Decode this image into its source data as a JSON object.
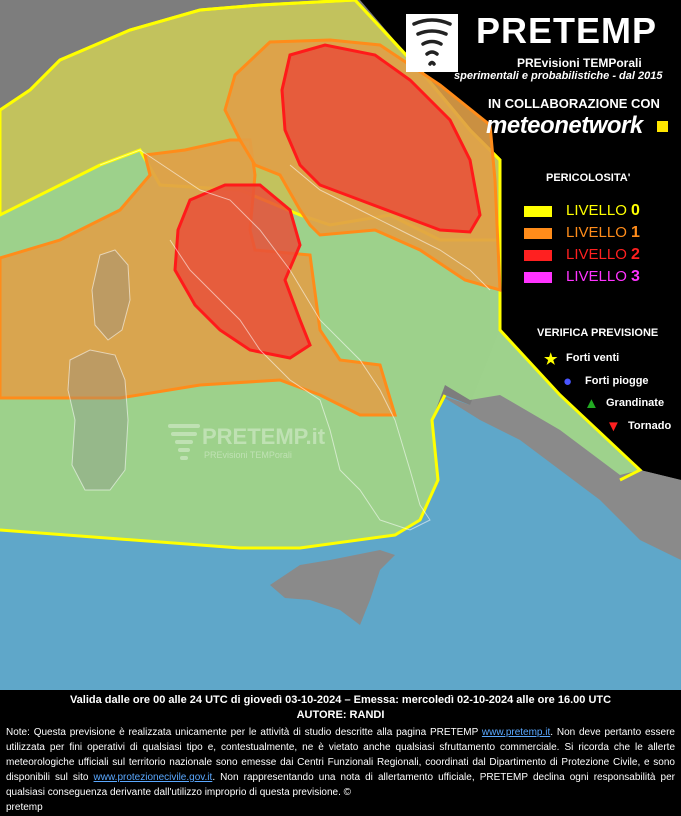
{
  "brand": {
    "title": "PRETEMP",
    "subtitle1": "PREvisioni TEMPorali",
    "subtitle2": "sperimentali e probabilistiche - dal 2015",
    "logo_icon": "tornado-icon"
  },
  "collab": {
    "label": "IN COLLABORAZIONE CON",
    "partner": "meteonetwork"
  },
  "legend": {
    "title": "PERICOLOSITA'",
    "levels": [
      {
        "label": "LIVELLO ",
        "num": "0",
        "color": "#ffff00"
      },
      {
        "label": "LIVELLO ",
        "num": "1",
        "color": "#ff8c1a"
      },
      {
        "label": "LIVELLO ",
        "num": "2",
        "color": "#ff2020"
      },
      {
        "label": "LIVELLO ",
        "num": "3",
        "color": "#ff33ff"
      }
    ]
  },
  "verify": {
    "title": "VERIFICA PREVISIONE",
    "items": [
      {
        "label": "Forti venti",
        "icon": "star-icon",
        "color": "#ffff00"
      },
      {
        "label": "Forti piogge",
        "icon": "circle-icon",
        "color": "#4a55ff"
      },
      {
        "label": "Grandinate",
        "icon": "triangle-up-icon",
        "color": "#22aa22"
      },
      {
        "label": "Tornado",
        "icon": "triangle-down-icon",
        "color": "#ff2020"
      }
    ]
  },
  "watermark": {
    "title": "PRETEMP.it",
    "subtitle": "PREvisioni TEMPorali"
  },
  "footer": {
    "validity": "Valida dalle ore 00 alle 24 UTC di giovedì 03-10-2024 – Emessa: mercoledì 02-10-2024 alle ore 16.00 UTC",
    "author": "AUTORE: RANDI",
    "note_1": "Note: Questa previsione è realizzata unicamente per le attività di studio descritte alla pagina PRETEMP ",
    "link_1": "www.pretemp.it",
    "note_2": ". Non deve pertanto essere utilizzata per fini operativi di qualsiasi tipo e, contestualmente, ne è vietato anche qualsiasi sfruttamento commerciale. Si ricorda che le allerte meteorologiche ufficiali sul territorio nazionale sono emesse dai Centri Funzionali Regionali, coordinati dal Dipartimento di Protezione Civile, e sono disponibili sul sito ",
    "link_2": "www.protezionecivile.gov.it",
    "note_3": ". Non rappresentando una nota di allertamento ufficiale, PRETEMP declina ogni responsabilità per qualsiasi conseguenza derivante dall'utilizzo improprio di questa previsione.  ©",
    "copyright": "pretemp"
  },
  "colors": {
    "sea": "#5fa7c9",
    "land": "#8a8a8a",
    "level0_fill": "#c8d25a",
    "level0_border": "#ffff00",
    "level1_fill": "#e8a040",
    "level1_border": "#ff8c1a",
    "level2_fill": "#e8503a",
    "level2_border": "#ff1a1a",
    "green_zone": "#9fd68c"
  }
}
